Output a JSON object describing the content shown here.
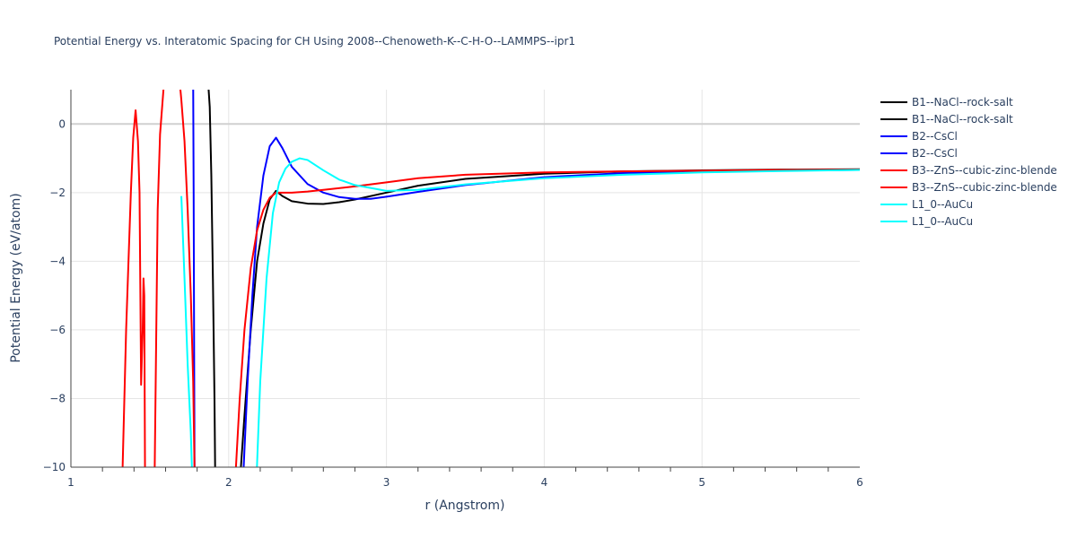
{
  "chart_data": {
    "type": "line",
    "title": "Potential Energy vs. Interatomic Spacing for CH Using 2008--Chenoweth-K--C-H-O--LAMMPS--ipr1",
    "xlabel": "r (Angstrom)",
    "ylabel": "Potential Energy (eV/atom)",
    "xlim": [
      1,
      6
    ],
    "ylim": [
      -10,
      1
    ],
    "x_ticks": [
      "1",
      "2",
      "3",
      "4",
      "5",
      "6"
    ],
    "y_ticks": [
      "0",
      "−2",
      "−4",
      "−6",
      "−8",
      "−10"
    ],
    "x_tick_values": [
      1,
      2,
      3,
      4,
      5,
      6
    ],
    "y_tick_values": [
      0,
      -2,
      -4,
      -6,
      -8,
      -10
    ],
    "grid": true,
    "legend_position": "right",
    "series": [
      {
        "name": "B1--NaCl--rock-salt",
        "color": "#000000",
        "segments": [
          [
            [
              1.87,
              1.2
            ],
            [
              1.88,
              0.5
            ],
            [
              1.89,
              -1.5
            ],
            [
              1.9,
              -4.5
            ],
            [
              1.91,
              -8.0
            ],
            [
              1.915,
              -10.5
            ]
          ],
          [
            [
              2.07,
              -10.5
            ],
            [
              2.1,
              -8.5
            ],
            [
              2.14,
              -6.0
            ],
            [
              2.18,
              -4.0
            ],
            [
              2.22,
              -2.9
            ],
            [
              2.26,
              -2.2
            ],
            [
              2.3,
              -1.95
            ],
            [
              2.34,
              -2.1
            ],
            [
              2.4,
              -2.25
            ],
            [
              2.5,
              -2.32
            ],
            [
              2.6,
              -2.33
            ],
            [
              2.7,
              -2.28
            ],
            [
              2.8,
              -2.2
            ],
            [
              3.0,
              -2.0
            ],
            [
              3.2,
              -1.8
            ],
            [
              3.5,
              -1.6
            ],
            [
              4.0,
              -1.45
            ],
            [
              4.5,
              -1.38
            ],
            [
              5.0,
              -1.35
            ],
            [
              5.5,
              -1.33
            ],
            [
              6.0,
              -1.32
            ]
          ]
        ]
      },
      {
        "name": "B1--NaCl--rock-salt",
        "color": "#000000",
        "segments": []
      },
      {
        "name": "B2--CsCl",
        "color": "#0000ff",
        "segments": [
          [
            [
              1.775,
              1.2
            ],
            [
              1.778,
              -2.0
            ],
            [
              1.78,
              -5.0
            ],
            [
              1.782,
              -8.0
            ],
            [
              1.784,
              -10.5
            ]
          ],
          [
            [
              2.09,
              -10.5
            ],
            [
              2.12,
              -7.5
            ],
            [
              2.15,
              -5.0
            ],
            [
              2.18,
              -3.0
            ],
            [
              2.22,
              -1.5
            ],
            [
              2.26,
              -0.65
            ],
            [
              2.3,
              -0.4
            ],
            [
              2.34,
              -0.7
            ],
            [
              2.4,
              -1.25
            ],
            [
              2.5,
              -1.75
            ],
            [
              2.6,
              -2.0
            ],
            [
              2.7,
              -2.13
            ],
            [
              2.8,
              -2.18
            ],
            [
              2.9,
              -2.18
            ],
            [
              3.0,
              -2.12
            ],
            [
              3.2,
              -1.98
            ],
            [
              3.5,
              -1.78
            ],
            [
              4.0,
              -1.55
            ],
            [
              4.5,
              -1.43
            ],
            [
              5.0,
              -1.38
            ],
            [
              5.5,
              -1.36
            ],
            [
              6.0,
              -1.34
            ]
          ]
        ]
      },
      {
        "name": "B2--CsCl",
        "color": "#0000ff",
        "segments": []
      },
      {
        "name": "B3--ZnS--cubic-zinc-blende",
        "color": "#ff0000",
        "segments": [
          [
            [
              1.325,
              -10.5
            ],
            [
              1.35,
              -6.0
            ],
            [
              1.38,
              -2.0
            ],
            [
              1.395,
              -0.4
            ],
            [
              1.41,
              0.4
            ],
            [
              1.425,
              -0.5
            ],
            [
              1.435,
              -2.0
            ],
            [
              1.445,
              -7.6
            ],
            [
              1.455,
              -6.0
            ],
            [
              1.46,
              -4.5
            ],
            [
              1.465,
              -5.0
            ],
            [
              1.47,
              -10.5
            ]
          ],
          [
            [
              1.53,
              -10.5
            ],
            [
              1.54,
              -6.5
            ],
            [
              1.55,
              -2.5
            ],
            [
              1.565,
              -0.3
            ],
            [
              1.58,
              0.6
            ],
            [
              1.59,
              1.2
            ]
          ],
          [
            [
              1.69,
              1.2
            ],
            [
              1.7,
              0.7
            ],
            [
              1.72,
              -0.5
            ],
            [
              1.74,
              -2.5
            ],
            [
              1.76,
              -5.0
            ],
            [
              1.775,
              -7.5
            ],
            [
              1.785,
              -10.5
            ]
          ],
          [
            [
              2.04,
              -10.5
            ],
            [
              2.07,
              -8.0
            ],
            [
              2.1,
              -6.0
            ],
            [
              2.14,
              -4.2
            ],
            [
              2.18,
              -3.1
            ],
            [
              2.22,
              -2.5
            ],
            [
              2.26,
              -2.15
            ],
            [
              2.3,
              -2.0
            ],
            [
              2.4,
              -2.0
            ],
            [
              2.5,
              -1.97
            ],
            [
              2.6,
              -1.92
            ],
            [
              2.8,
              -1.82
            ],
            [
              3.0,
              -1.7
            ],
            [
              3.2,
              -1.58
            ],
            [
              3.5,
              -1.48
            ],
            [
              4.0,
              -1.41
            ],
            [
              4.5,
              -1.38
            ],
            [
              5.0,
              -1.36
            ],
            [
              5.5,
              -1.34
            ],
            [
              6.0,
              -1.33
            ]
          ]
        ]
      },
      {
        "name": "B3--ZnS--cubic-zinc-blende",
        "color": "#ff0000",
        "segments": []
      },
      {
        "name": "L1_0--AuCu",
        "color": "#00ffff",
        "segments": [
          [
            [
              1.7,
              -2.1
            ],
            [
              1.72,
              -4.5
            ],
            [
              1.74,
              -7.0
            ],
            [
              1.76,
              -9.0
            ],
            [
              1.77,
              -10.5
            ]
          ],
          [
            [
              2.175,
              -10.5
            ],
            [
              2.2,
              -7.5
            ],
            [
              2.24,
              -4.5
            ],
            [
              2.28,
              -2.6
            ],
            [
              2.32,
              -1.7
            ],
            [
              2.36,
              -1.3
            ],
            [
              2.4,
              -1.1
            ],
            [
              2.45,
              -1.0
            ],
            [
              2.5,
              -1.05
            ],
            [
              2.6,
              -1.35
            ],
            [
              2.7,
              -1.62
            ],
            [
              2.8,
              -1.78
            ],
            [
              3.0,
              -1.95
            ],
            [
              3.2,
              -1.92
            ],
            [
              3.5,
              -1.76
            ],
            [
              4.0,
              -1.58
            ],
            [
              4.5,
              -1.48
            ],
            [
              5.0,
              -1.41
            ],
            [
              5.5,
              -1.37
            ],
            [
              6.0,
              -1.34
            ]
          ]
        ]
      },
      {
        "name": "L1_0--AuCu",
        "color": "#00ffff",
        "segments": []
      }
    ]
  }
}
